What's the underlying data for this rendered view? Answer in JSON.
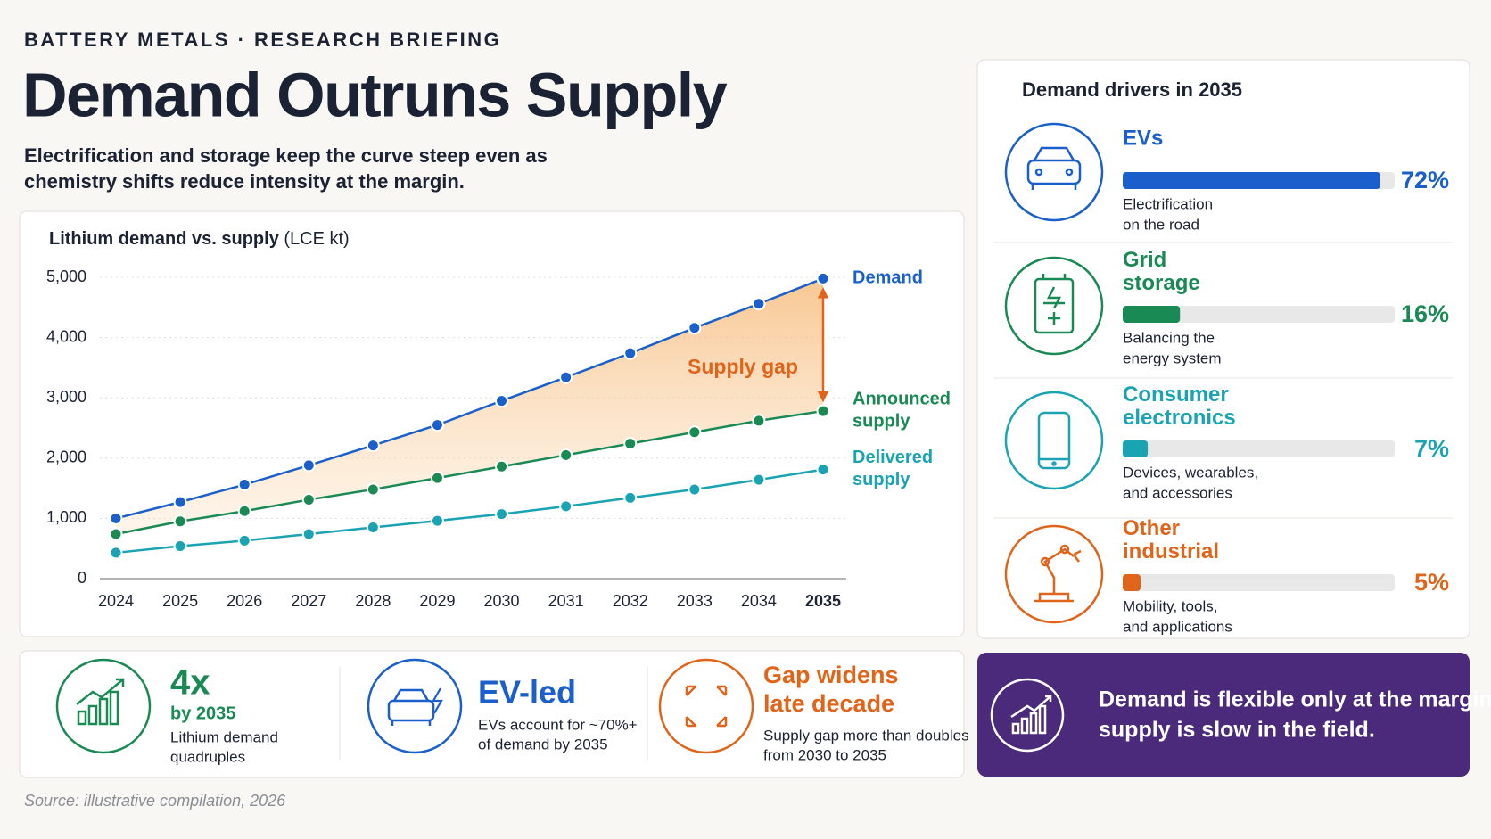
{
  "kicker": "BATTERY METALS  ·  RESEARCH BRIEFING",
  "title": "Demand Outruns Supply",
  "subtitle": [
    "Electrification and storage keep the curve steep even as",
    "chemistry shifts reduce intensity at the margin."
  ],
  "chart_data": [
    {
      "type": "line",
      "title": "Lithium demand vs. supply",
      "unit": "(LCE kt)",
      "categories": [
        "2024",
        "2025",
        "2026",
        "2027",
        "2028",
        "2029",
        "2030",
        "2031",
        "2032",
        "2033",
        "2034",
        "2035"
      ],
      "series": [
        {
          "name": "Demand",
          "color": "#1a5fcc",
          "values": [
            1000,
            1270,
            1560,
            1880,
            2210,
            2550,
            2950,
            3340,
            3740,
            4160,
            4560,
            4980
          ]
        },
        {
          "name": "Announced supply",
          "color": "#1a8a55",
          "values": [
            740,
            950,
            1120,
            1310,
            1480,
            1670,
            1860,
            2050,
            2240,
            2430,
            2620,
            2780
          ]
        },
        {
          "name": "Delivered supply",
          "color": "#1aa3b3",
          "values": [
            430,
            540,
            630,
            740,
            850,
            960,
            1070,
            1200,
            1340,
            1480,
            1640,
            1810
          ]
        }
      ],
      "ylim": [
        0,
        5000
      ],
      "yticks": [
        0,
        {
          "value": 1000,
          "label": "1,000"
        },
        {
          "value": 2000,
          "label": "2,000"
        },
        {
          "value": 3000,
          "label": "3,000"
        },
        {
          "value": 4000,
          "label": "4,000"
        },
        {
          "value": 5000,
          "label": "5,000"
        }
      ],
      "grid": true,
      "annotation": "Supply gap"
    },
    {
      "type": "bar",
      "title": "Demand drivers in 2035",
      "categories": [
        "EVs",
        "Grid storage",
        "Consumer electronics",
        "Other industrial"
      ],
      "values": [
        72,
        16,
        7,
        5
      ],
      "value_labels": [
        "72%",
        "16%",
        "7%",
        "5%"
      ],
      "colors": [
        "#1a5fcc",
        "#1a8a55",
        "#1aa3b3",
        "#e0651a"
      ],
      "descriptions": [
        [
          "Electrification",
          "on the road"
        ],
        [
          "Balancing the",
          "energy system"
        ],
        [
          "Devices, wearables,",
          "and accessories"
        ],
        [
          "Mobility, tools,",
          "and applications"
        ]
      ],
      "xlim": [
        0,
        76
      ]
    }
  ],
  "stats": [
    {
      "headline": [
        "4x"
      ],
      "sub": "by 2035",
      "desc": [
        "Lithium demand",
        "quadruples"
      ]
    },
    {
      "headline": [
        "EV-led"
      ],
      "desc": [
        "EVs account for ~70%+",
        "of demand by 2035"
      ]
    },
    {
      "headline": [
        "Gap widens",
        "late decade"
      ],
      "desc": [
        "Supply gap more than doubles",
        "from 2030 to 2035"
      ]
    }
  ],
  "callout": [
    "Demand is flexible only at the margin;",
    "supply is slow in the field."
  ],
  "source": "Source: illustrative compilation, 2026"
}
